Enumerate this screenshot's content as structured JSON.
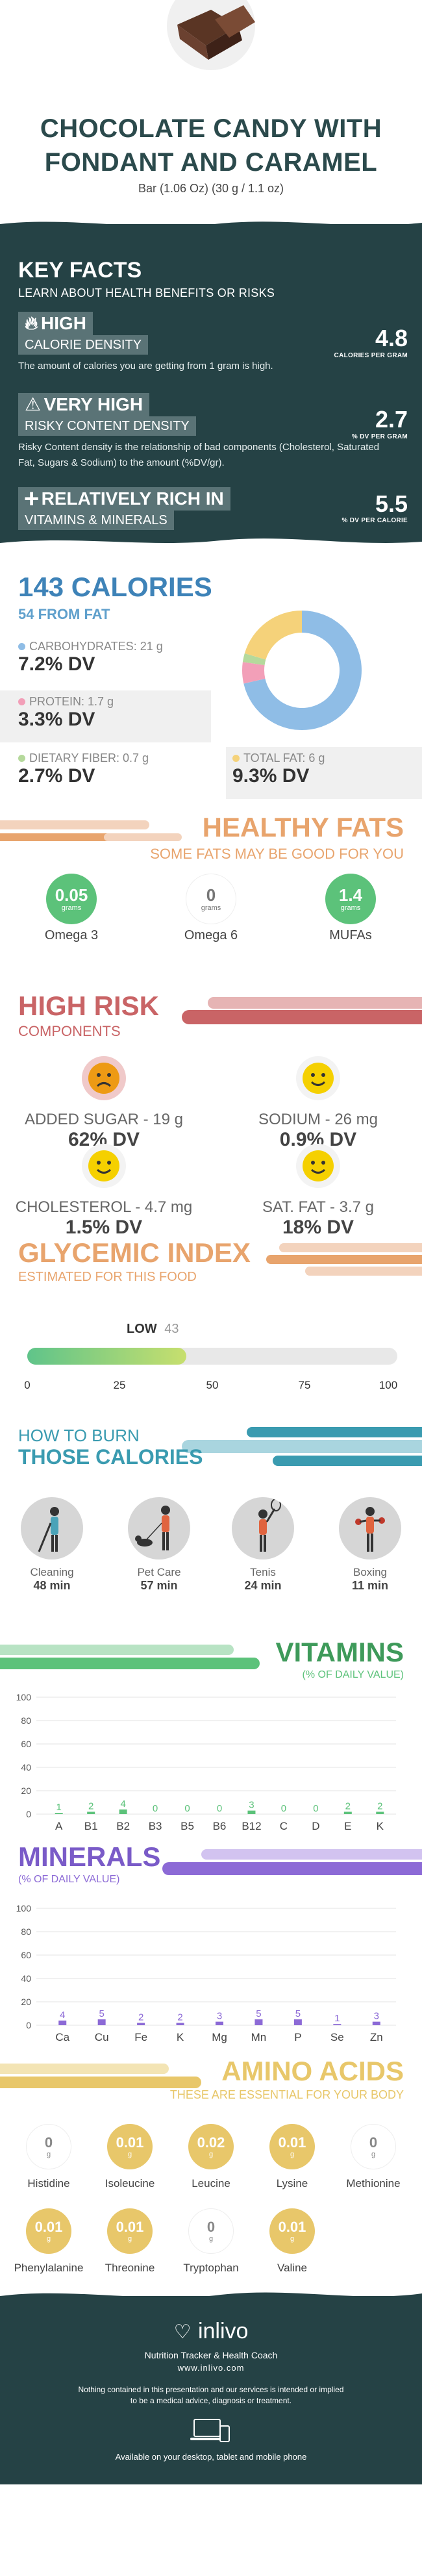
{
  "header": {
    "title_line1": "CHOCOLATE CANDY WITH",
    "title_line2": "FONDANT AND CARAMEL",
    "serving": "Bar (1.06 Oz) (30 g / 1.1 oz)"
  },
  "key_facts": {
    "title": "KEY FACTS",
    "subtitle": "LEARN ABOUT HEALTH BENEFITS OR RISKS",
    "facts": [
      {
        "strong": "HIGH",
        "sub": "CALORIE DENSITY",
        "desc": "The amount of calories you are getting from 1 gram is high.",
        "value": "4.8",
        "unit": "CALORIES PER GRAM",
        "icon": "flame-icon"
      },
      {
        "strong": "VERY HIGH",
        "sub": "RISKY CONTENT DENSITY",
        "desc": "Risky Content density is the relationship of bad components (Cholesterol, Saturated Fat, Sugars & Sodium) to the amount (%DV/gr).",
        "value": "2.7",
        "unit": "% DV PER GRAM",
        "icon": "warning-icon"
      },
      {
        "strong": "RELATIVELY RICH  IN",
        "sub": "VITAMINS & MINERALS",
        "desc": "",
        "value": "5.5",
        "unit": "% DV PER CALORIE",
        "icon": "plus-icon"
      }
    ]
  },
  "calories": {
    "title": "143 CALORIES",
    "from_fat": "54 FROM FAT",
    "macros": [
      {
        "label": "CARBOHYDRATES: 21 g",
        "dv": "7.2% DV",
        "color": "#8fbde6"
      },
      {
        "label": "PROTEIN: 1.7 g",
        "dv": "3.3% DV",
        "color": "#f29fb8"
      },
      {
        "label": "DIETARY FIBER: 0.7 g",
        "dv": "2.7% DV",
        "color": "#b5d99c"
      },
      {
        "label": "TOTAL FAT: 6 g",
        "dv": "9.3% DV",
        "color": "#f5d27a"
      }
    ],
    "donut": [
      {
        "name": "carbs",
        "value": 21,
        "color": "#8fbde6"
      },
      {
        "name": "protein",
        "value": 1.7,
        "color": "#f29fb8"
      },
      {
        "name": "fiber",
        "value": 0.7,
        "color": "#b5d99c"
      },
      {
        "name": "fat",
        "value": 6,
        "color": "#f5d27a"
      }
    ]
  },
  "healthy_fats": {
    "title": "HEALTHY FATS",
    "subtitle": "SOME FATS MAY BE GOOD FOR YOU",
    "items": [
      {
        "value": "0.05",
        "unit": "grams",
        "name": "Omega 3",
        "color": "#5cc27a"
      },
      {
        "value": "0",
        "unit": "grams",
        "name": "Omega 6",
        "color": "#ffffff"
      },
      {
        "value": "1.4",
        "unit": "grams",
        "name": "MUFAs",
        "color": "#5cc27a"
      }
    ]
  },
  "high_risk": {
    "title": "HIGH RISK",
    "subtitle": "COMPONENTS",
    "items": [
      {
        "name": "ADDED SUGAR - 19 g",
        "dv": "62% DV",
        "face": "sad-face-icon"
      },
      {
        "name": "SODIUM - 26 mg",
        "dv": "0.9% DV",
        "face": "smile-face-icon"
      },
      {
        "name": "CHOLESTEROL - 4.7 mg",
        "dv": "1.5% DV",
        "face": "smile-face-icon"
      },
      {
        "name": "SAT. FAT - 3.7 g",
        "dv": "18% DV",
        "face": "smile-face-icon"
      }
    ]
  },
  "glycemic": {
    "title": "GLYCEMIC INDEX",
    "subtitle": "ESTIMATED FOR THIS FOOD",
    "level": "LOW",
    "value": "43",
    "value_num": 43,
    "ticks": [
      "0",
      "25",
      "50",
      "75",
      "100"
    ]
  },
  "burn": {
    "title_line1": "HOW TO BURN",
    "title_line2": "THOSE CALORIES",
    "activities": [
      {
        "name": "Cleaning",
        "minutes": "48 min",
        "icon": "cleaning-person-icon"
      },
      {
        "name": "Pet Care",
        "minutes": "57 min",
        "icon": "dog-walking-icon"
      },
      {
        "name": "Tenis",
        "minutes": "24 min",
        "icon": "tennis-player-icon"
      },
      {
        "name": "Boxing",
        "minutes": "11 min",
        "icon": "boxer-icon"
      }
    ]
  },
  "vitamins": {
    "title": "VITAMINS",
    "subtitle": "(% OF DAILY VALUE)"
  },
  "minerals": {
    "title": "MINERALS",
    "subtitle": "(% OF DAILY VALUE)"
  },
  "chart_data": [
    {
      "type": "bar",
      "categories": [
        "A",
        "B1",
        "B2",
        "B3",
        "B5",
        "B6",
        "B12",
        "C",
        "D",
        "E",
        "K"
      ],
      "values": [
        1,
        2,
        4,
        0,
        0,
        0,
        3,
        0,
        0,
        2,
        2
      ],
      "yticks": [
        "0",
        "20",
        "40",
        "60",
        "80",
        "100"
      ],
      "ylim": [
        0,
        100
      ],
      "color": "#5cc27a"
    },
    {
      "type": "bar",
      "categories": [
        "Ca",
        "Cu",
        "Fe",
        "K",
        "Mg",
        "Mn",
        "P",
        "Se",
        "Zn"
      ],
      "values": [
        4,
        5,
        2,
        2,
        3,
        5,
        5,
        1,
        3
      ],
      "yticks": [
        "0",
        "20",
        "40",
        "60",
        "80",
        "100"
      ],
      "ylim": [
        0,
        100
      ],
      "color": "#8c6ad6"
    }
  ],
  "amino": {
    "title": "AMINO ACIDS",
    "subtitle": "THESE ARE ESSENTIAL FOR YOUR BODY",
    "items": [
      {
        "value": "0",
        "unit": "g",
        "name": "Histidine",
        "filled": false
      },
      {
        "value": "0.01",
        "unit": "g",
        "name": "Isoleucine",
        "filled": true
      },
      {
        "value": "0.02",
        "unit": "g",
        "name": "Leucine",
        "filled": true
      },
      {
        "value": "0.01",
        "unit": "g",
        "name": "Lysine",
        "filled": true
      },
      {
        "value": "0",
        "unit": "g",
        "name": "Methionine",
        "filled": false
      },
      {
        "value": "0.01",
        "unit": "g",
        "name": "Phenylalanine",
        "filled": true
      },
      {
        "value": "0.01",
        "unit": "g",
        "name": "Threonine",
        "filled": true
      },
      {
        "value": "0",
        "unit": "g",
        "name": "Tryptophan",
        "filled": false
      },
      {
        "value": "0.01",
        "unit": "g",
        "name": "Valine",
        "filled": true
      }
    ]
  },
  "footer": {
    "brand": "inlivo",
    "tagline": "Nutrition Tracker & Health Coach",
    "url": "www.inlivo.com",
    "disclaimer_line1": "Nothing contained in this presentation and our services is intended or implied",
    "disclaimer_line2": "to be a medical advice, diagnosis or treatment.",
    "available": "Available on your desktop, tablet and mobile phone"
  },
  "colors": {
    "dark_teal": "#254245",
    "orange": "#e8a46d",
    "red": "#c96466",
    "blue": "#3e83b8",
    "teal": "#3a9bb0",
    "green": "#5cc27a",
    "purple": "#8c6ad6",
    "gold": "#e8c76a"
  }
}
